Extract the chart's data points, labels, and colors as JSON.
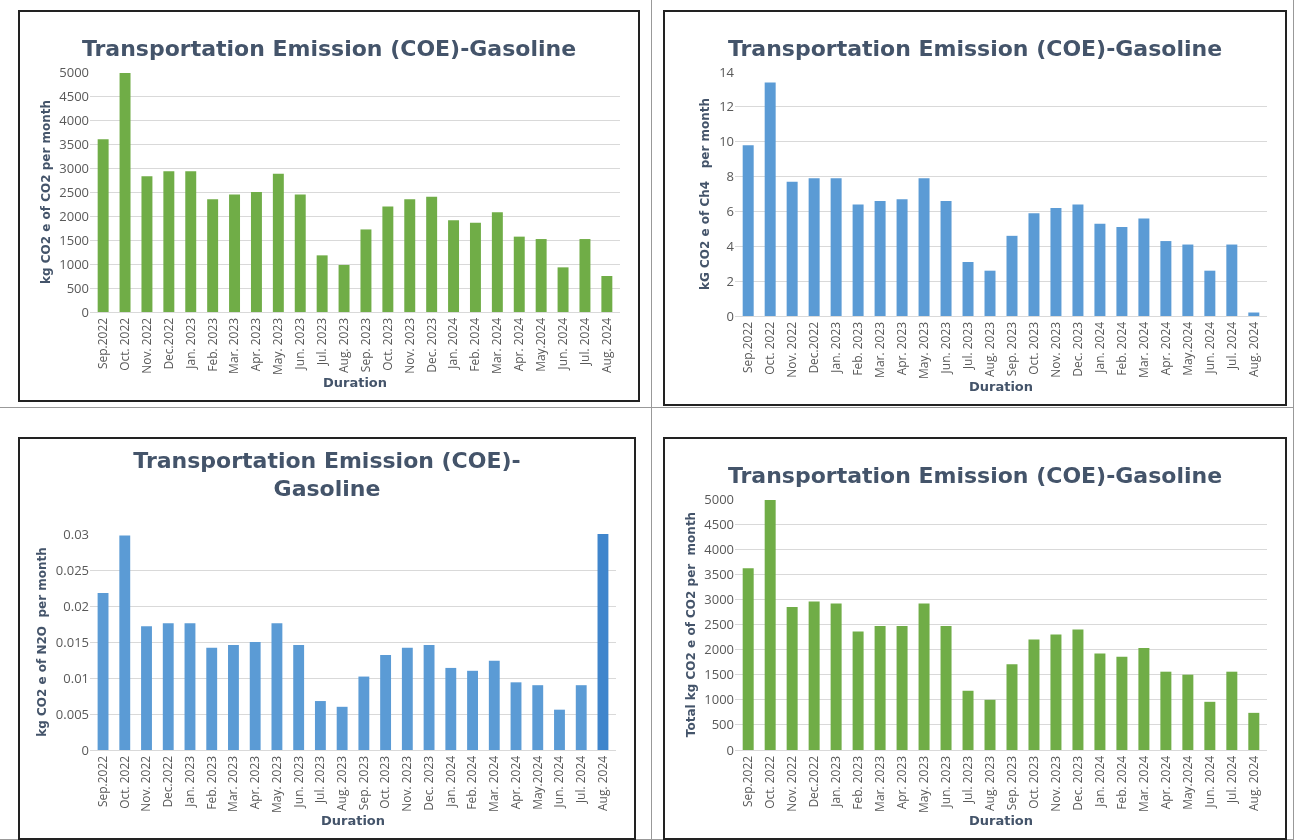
{
  "chart_data": [
    {
      "type": "bar",
      "title": "Transportation Emission (COE)-Gasoline",
      "xlabel": "Duration",
      "ylabel": "kg CO2 e of CO2 per month",
      "categories": [
        "Sep.2022",
        "Oct. 2022",
        "Nov. 2022",
        "Dec.2022",
        "Jan. 2023",
        "Feb. 2023",
        "Mar. 2023",
        "Apr. 2023",
        "May. 2023",
        "Jun. 2023",
        "Jul. 2023",
        "Aug. 2023",
        "Sep. 2023",
        "Oct. 2023",
        "Nov. 2023",
        "Dec. 2023",
        "Jan. 2024",
        "Feb. 2024",
        "Mar. 2024",
        "Apr. 2024",
        "May.2024",
        "Jun. 2024",
        "Jul. 2024",
        "Aug. 2024"
      ],
      "values": [
        3600,
        4980,
        2830,
        2930,
        2930,
        2350,
        2450,
        2500,
        2880,
        2450,
        1180,
        980,
        1720,
        2200,
        2350,
        2400,
        1910,
        1860,
        2080,
        1570,
        1520,
        930,
        1520,
        750
      ],
      "color": "#70ad47",
      "ylim": [
        0,
        5000
      ],
      "yticks": [
        0,
        500,
        1000,
        1500,
        2000,
        2500,
        3000,
        3500,
        4000,
        4500,
        5000
      ],
      "grid": "y"
    },
    {
      "type": "bar",
      "title": "Transportation Emission (COE)-Gasoline",
      "xlabel": "Duration",
      "ylabel": "kG CO2 e of Ch4   per month",
      "categories": [
        "Sep.2022",
        "Oct. 2022",
        "Nov. 2022",
        "Dec.2022",
        "Jan. 2023",
        "Feb. 2023",
        "Mar. 2023",
        "Apr. 2023",
        "May. 2023",
        "Jun. 2023",
        "Jul. 2023",
        "Aug. 2023",
        "Sep. 2023",
        "Oct. 2023",
        "Nov. 2023",
        "Dec. 2023",
        "Jan. 2024",
        "Feb. 2024",
        "Mar. 2024",
        "Apr. 2024",
        "May.2024",
        "Jun. 2024",
        "Jul. 2024",
        "Aug. 2024"
      ],
      "values": [
        9.8,
        13.4,
        7.7,
        7.9,
        7.9,
        6.4,
        6.6,
        6.7,
        7.9,
        6.6,
        3.1,
        2.6,
        4.6,
        5.9,
        6.2,
        6.4,
        5.3,
        5.1,
        5.6,
        4.3,
        4.1,
        2.6,
        4.1,
        0.2
      ],
      "color": "#5b9bd5",
      "ylim": [
        0,
        14
      ],
      "yticks": [
        0,
        2,
        4,
        6,
        8,
        10,
        12,
        14
      ],
      "grid": "y"
    },
    {
      "type": "bar",
      "title": "Transportation Emission (COE)-\nGasoline",
      "xlabel": "Duration",
      "ylabel": "kg CO2 e of N2O  per month",
      "categories": [
        "Sep.2022",
        "Oct. 2022",
        "Nov. 2022",
        "Dec.2022",
        "Jan. 2023",
        "Feb. 2023",
        "Mar. 2023",
        "Apr. 2023",
        "May. 2023",
        "Jun. 2023",
        "Jul. 2023",
        "Aug. 2023",
        "Sep. 2023",
        "Oct. 2023",
        "Nov. 2023",
        "Dec. 2023",
        "Jan. 2024",
        "Feb. 2024",
        "Mar. 2024",
        "Apr. 2024",
        "May.2024",
        "Jun. 2024",
        "Jul. 2024",
        "Aug. 2024"
      ],
      "values": [
        0.0218,
        0.0298,
        0.0172,
        0.0176,
        0.0176,
        0.0142,
        0.0146,
        0.015,
        0.0176,
        0.0146,
        0.0068,
        0.006,
        0.0102,
        0.0132,
        0.0142,
        0.0146,
        0.0114,
        0.011,
        0.0124,
        0.0094,
        0.009,
        0.0056,
        0.009,
        0.03
      ],
      "colors": [
        "#5b9bd5",
        "#5b9bd5",
        "#5b9bd5",
        "#5b9bd5",
        "#5b9bd5",
        "#5b9bd5",
        "#5b9bd5",
        "#5b9bd5",
        "#5b9bd5",
        "#5b9bd5",
        "#5b9bd5",
        "#5b9bd5",
        "#5b9bd5",
        "#5b9bd5",
        "#5b9bd5",
        "#5b9bd5",
        "#5b9bd5",
        "#5b9bd5",
        "#5b9bd5",
        "#5b9bd5",
        "#5b9bd5",
        "#5b9bd5",
        "#5b9bd5",
        "#3f85cc"
      ],
      "ylim": [
        0,
        0.03
      ],
      "yticks": [
        0,
        0.005,
        0.01,
        0.015,
        0.02,
        0.025,
        0.03
      ],
      "grid": "y"
    },
    {
      "type": "bar",
      "title": "Transportation Emission (COE)-Gasoline",
      "xlabel": "Duration",
      "ylabel": "Total kg CO2 e of CO2 per  month",
      "categories": [
        "Sep.2022",
        "Oct. 2022",
        "Nov. 2022",
        "Dec.2022",
        "Jan. 2023",
        "Feb. 2023",
        "Mar. 2023",
        "Apr. 2023",
        "May. 2023",
        "Jun. 2023",
        "Jul. 2023",
        "Aug. 2023",
        "Sep. 2023",
        "Oct. 2023",
        "Nov. 2023",
        "Dec. 2023",
        "Jan. 2024",
        "Feb. 2024",
        "Mar. 2024",
        "Apr. 2024",
        "May.2024",
        "Jun. 2024",
        "Jul. 2024",
        "Aug. 2024"
      ],
      "values": [
        3620,
        4980,
        2850,
        2960,
        2920,
        2360,
        2470,
        2470,
        2920,
        2470,
        1180,
        1000,
        1710,
        2200,
        2300,
        2400,
        1920,
        1860,
        2030,
        1560,
        1500,
        960,
        1560,
        740
      ],
      "color": "#70ad47",
      "ylim": [
        0,
        5000
      ],
      "yticks": [
        0,
        500,
        1000,
        1500,
        2000,
        2500,
        3000,
        3500,
        4000,
        4500,
        5000
      ],
      "grid": "y"
    }
  ]
}
